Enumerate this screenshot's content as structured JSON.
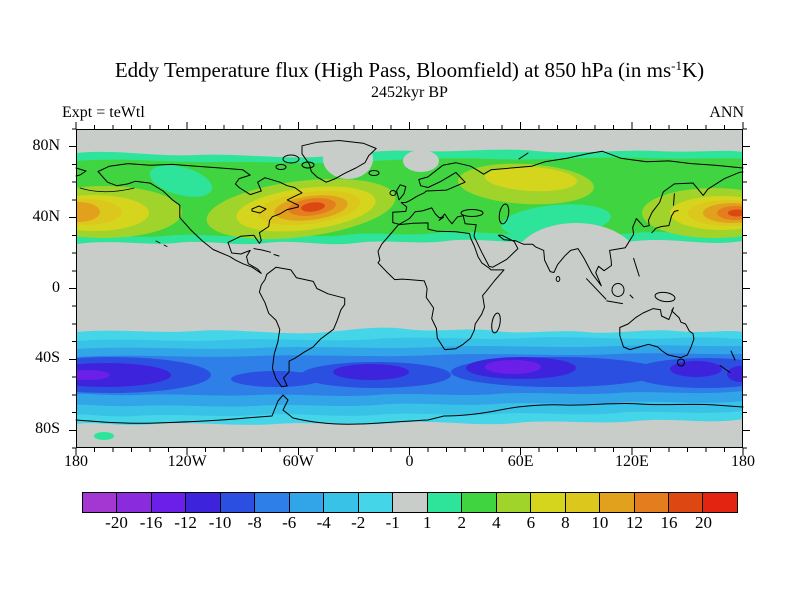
{
  "header": {
    "title_prefix": "Eddy Temperature flux (High Pass, Bloomfield) at 850 hPa (in ms",
    "title_sup": "-1",
    "title_suffix": "K)",
    "subtitle": "2452kyr BP",
    "left_label": "Expt = teWtl",
    "right_label": "ANN"
  },
  "axes": {
    "x_ticks": [
      {
        "label": "180",
        "lon": -180
      },
      {
        "label": "120W",
        "lon": -120
      },
      {
        "label": "60W",
        "lon": -60
      },
      {
        "label": "0",
        "lon": 0
      },
      {
        "label": "60E",
        "lon": 60
      },
      {
        "label": "120E",
        "lon": 120
      },
      {
        "label": "180",
        "lon": 180
      }
    ],
    "y_ticks": [
      {
        "label": "80N",
        "lat": 80
      },
      {
        "label": "40N",
        "lat": 40
      },
      {
        "label": "0",
        "lat": 0
      },
      {
        "label": "40S",
        "lat": -40
      },
      {
        "label": "80S",
        "lat": -80
      }
    ],
    "minor_step_deg": 10,
    "major_step_lon_deg": 60,
    "major_step_lat_deg": 40
  },
  "colorbar": {
    "labels": [
      "-20",
      "-16",
      "-12",
      "-10",
      "-8",
      "-6",
      "-4",
      "-2",
      "-1",
      "1",
      "2",
      "4",
      "6",
      "8",
      "10",
      "12",
      "16",
      "20"
    ],
    "colors": [
      "#A437D2",
      "#8A2BDE",
      "#6B1FE8",
      "#3D23DC",
      "#2B4FE0",
      "#2E7FE8",
      "#31A5E8",
      "#39C2E8",
      "#45D5E8",
      "#C9CDC9",
      "#2EE49A",
      "#41D441",
      "#A0D42A",
      "#D6D51E",
      "#DCC81D",
      "#E2A11C",
      "#E37D1E",
      "#DC4712",
      "#E32410"
    ]
  },
  "map": {
    "background_color": "#C9CDC9",
    "coastline_color": "#000000",
    "frame_color": "#000000"
  },
  "chart_data": {
    "type": "heatmap",
    "subtype": "filled_contour_world_map",
    "title": "Eddy Temperature flux (High Pass, Bloomfield) at 850 hPa (in ms-1K)",
    "subtitle": "2452kyr BP",
    "experiment": "teWtl",
    "season": "ANN",
    "units": "ms-1K",
    "pressure_level_hPa": 850,
    "projection": "equirectangular",
    "lon_range": [
      -180,
      180
    ],
    "lat_range": [
      -90,
      90
    ],
    "contour_levels": [
      -20,
      -16,
      -12,
      -10,
      -8,
      -6,
      -4,
      -2,
      -1,
      1,
      2,
      4,
      6,
      8,
      10,
      12,
      16,
      20
    ],
    "palette": [
      "#A437D2",
      "#8A2BDE",
      "#6B1FE8",
      "#3D23DC",
      "#2B4FE0",
      "#2E7FE8",
      "#31A5E8",
      "#39C2E8",
      "#45D5E8",
      "#C9CDC9",
      "#2EE49A",
      "#41D441",
      "#A0D42A",
      "#D6D51E",
      "#DCC81D",
      "#E2A11C",
      "#E37D1E",
      "#DC4712",
      "#E32410"
    ],
    "grid": false,
    "legend_position": "bottom_colorbar",
    "features": [
      {
        "region": "North Atlantic storm track (east of North America)",
        "lon": -62,
        "lat": 42,
        "peak_level": "16 to 20"
      },
      {
        "region": "Northwest Pacific storm track (east of Japan)",
        "lon": 160,
        "lat": 40,
        "peak_level": "16 to 20"
      },
      {
        "region": "North Pacific (near dateline, map left edge)",
        "lon": -175,
        "lat": 42,
        "peak_level": "10 to 12"
      },
      {
        "region": "Europe / western Russia",
        "lon": 45,
        "lat": 55,
        "peak_level": "6 to 8"
      },
      {
        "region": "NH midlatitude band",
        "lat_band": "28N to 73N",
        "level": "1 to 8"
      },
      {
        "region": "Tropics and subtropics",
        "lat_band": "25S to 27N",
        "level": "-1 to 1"
      },
      {
        "region": "SH storm track Indian Ocean",
        "lon": 57,
        "lat": -52,
        "peak_level": "-12 to -16"
      },
      {
        "region": "SH storm track South Pacific (map left edge)",
        "lon": -172,
        "lat": -52,
        "peak_level": "-10 to -12"
      },
      {
        "region": "SH storm track South Atlantic",
        "lon": -22,
        "lat": -50,
        "peak_level": "-10 to -12"
      },
      {
        "region": "SH storm track south of Australia / New Zealand",
        "lon": 150,
        "lat": -55,
        "peak_level": "-10 to -12"
      },
      {
        "region": "SH midlatitude band",
        "lat_band": "70S to 25S",
        "level": "-1 to -10"
      },
      {
        "region": "Polar caps",
        "lat_band": "poleward of 75",
        "level": "-1 to 1"
      }
    ]
  }
}
